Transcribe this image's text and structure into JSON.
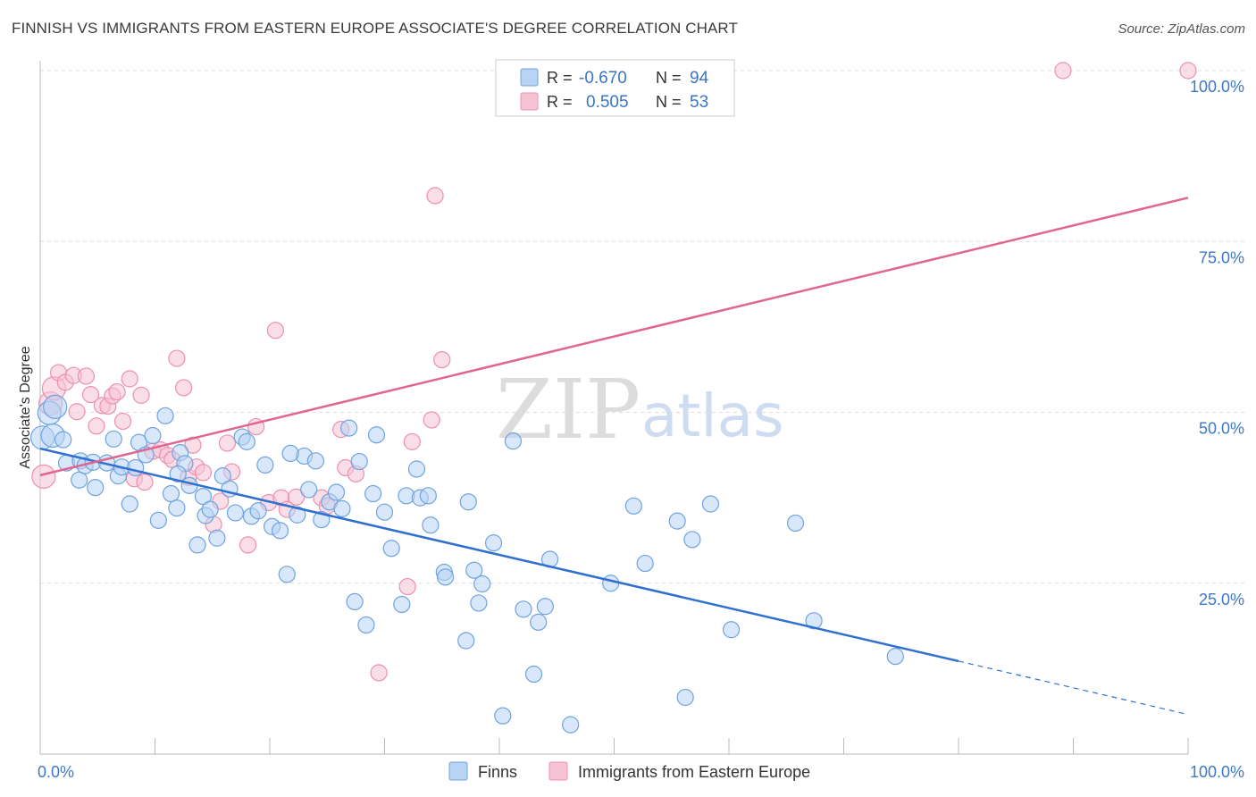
{
  "header": {
    "title": "FINNISH VS IMMIGRANTS FROM EASTERN EUROPE ASSOCIATE'S DEGREE CORRELATION CHART",
    "source": "Source: ZipAtlas.com"
  },
  "watermark": {
    "zip": "ZIP",
    "atlas": "atlas"
  },
  "colors": {
    "finns": "#6fa3e0",
    "finns_fill": "#b8d3f4",
    "finns_line": "#2f6fd0",
    "eastern": "#ee8fae",
    "eastern_fill": "#f6c3d4",
    "eastern_line": "#e06690",
    "axis_text": "#3d78c9",
    "grid": "#dddddd"
  },
  "legend": {
    "rows": [
      {
        "r_label": "R =",
        "r_value": "-0.670",
        "n_label": "N =",
        "n_value": "94"
      },
      {
        "r_label": "R =",
        "r_value": "0.505",
        "n_label": "N =",
        "n_value": "53"
      }
    ]
  },
  "chart_data": {
    "type": "scatter",
    "title": "FINNISH VS IMMIGRANTS FROM EASTERN EUROPE ASSOCIATE'S DEGREE CORRELATION CHART",
    "xlabel": "",
    "ylabel": "Associate's Degree",
    "xlim": [
      0,
      100
    ],
    "ylim": [
      0,
      100
    ],
    "x_tick_labels": [
      "0.0%",
      "100.0%"
    ],
    "y_tick_labels": [
      "25.0%",
      "50.0%",
      "75.0%",
      "100.0%"
    ],
    "y_ticks": [
      25,
      50,
      75,
      100
    ],
    "legend_position": "top-center",
    "series": [
      {
        "name": "Finns",
        "r": -0.67,
        "n": 94,
        "trend": {
          "x": [
            0,
            80
          ],
          "y": [
            44.7,
            13.6
          ],
          "dashed_to": [
            100,
            5.8
          ]
        },
        "points": [
          [
            0.2,
            46.3
          ],
          [
            0.8,
            49.9
          ],
          [
            1.1,
            46.6
          ],
          [
            1.3,
            50.8
          ],
          [
            2.3,
            42.6
          ],
          [
            3.4,
            40.1
          ],
          [
            3.5,
            42.9
          ],
          [
            3.9,
            42.2
          ],
          [
            4.6,
            42.7
          ],
          [
            4.8,
            39.0
          ],
          [
            5.8,
            42.6
          ],
          [
            6.4,
            46.1
          ],
          [
            6.8,
            40.7
          ],
          [
            7.1,
            42.0
          ],
          [
            7.8,
            36.6
          ],
          [
            8.3,
            41.9
          ],
          [
            8.6,
            45.6
          ],
          [
            9.2,
            43.8
          ],
          [
            9.8,
            46.6
          ],
          [
            10.3,
            34.2
          ],
          [
            10.9,
            49.5
          ],
          [
            11.4,
            38.1
          ],
          [
            11.9,
            36.0
          ],
          [
            12.2,
            44.1
          ],
          [
            12.6,
            42.5
          ],
          [
            13.0,
            39.3
          ],
          [
            13.7,
            30.6
          ],
          [
            14.2,
            37.7
          ],
          [
            14.4,
            34.9
          ],
          [
            14.8,
            35.8
          ],
          [
            15.4,
            31.6
          ],
          [
            15.9,
            40.7
          ],
          [
            16.5,
            38.8
          ],
          [
            17.0,
            35.3
          ],
          [
            17.6,
            46.4
          ],
          [
            18.0,
            45.7
          ],
          [
            18.4,
            34.8
          ],
          [
            19.0,
            35.6
          ],
          [
            19.6,
            42.3
          ],
          [
            20.2,
            33.3
          ],
          [
            20.9,
            32.7
          ],
          [
            21.5,
            26.3
          ],
          [
            22.4,
            35.0
          ],
          [
            23.0,
            43.6
          ],
          [
            23.4,
            38.7
          ],
          [
            24.0,
            42.9
          ],
          [
            24.5,
            34.3
          ],
          [
            25.2,
            36.9
          ],
          [
            25.8,
            38.3
          ],
          [
            26.3,
            35.9
          ],
          [
            26.9,
            47.7
          ],
          [
            27.4,
            22.3
          ],
          [
            27.8,
            42.8
          ],
          [
            28.4,
            18.9
          ],
          [
            29.0,
            38.1
          ],
          [
            29.3,
            46.7
          ],
          [
            30.0,
            35.4
          ],
          [
            30.6,
            30.1
          ],
          [
            31.5,
            21.9
          ],
          [
            31.9,
            37.8
          ],
          [
            32.8,
            41.7
          ],
          [
            33.1,
            37.5
          ],
          [
            33.8,
            37.8
          ],
          [
            34.0,
            33.5
          ],
          [
            35.2,
            26.6
          ],
          [
            35.3,
            25.9
          ],
          [
            37.1,
            16.6
          ],
          [
            37.3,
            36.9
          ],
          [
            37.8,
            26.9
          ],
          [
            38.2,
            22.1
          ],
          [
            38.5,
            24.9
          ],
          [
            39.5,
            30.9
          ],
          [
            40.3,
            5.6
          ],
          [
            41.2,
            45.8
          ],
          [
            42.1,
            21.2
          ],
          [
            43.0,
            11.7
          ],
          [
            43.4,
            19.3
          ],
          [
            44.0,
            21.6
          ],
          [
            44.4,
            28.5
          ],
          [
            46.2,
            4.3
          ],
          [
            49.7,
            25.0
          ],
          [
            51.7,
            36.3
          ],
          [
            52.7,
            27.9
          ],
          [
            55.5,
            34.1
          ],
          [
            56.2,
            8.3
          ],
          [
            56.8,
            31.4
          ],
          [
            58.4,
            36.6
          ],
          [
            60.2,
            18.2
          ],
          [
            65.8,
            33.8
          ],
          [
            67.4,
            19.5
          ],
          [
            74.5,
            14.3
          ],
          [
            2.0,
            46.0
          ],
          [
            12.0,
            41.0
          ],
          [
            21.8,
            44.0
          ]
        ]
      },
      {
        "name": "Immigrants from Eastern Europe",
        "r": 0.505,
        "n": 53,
        "trend": {
          "x": [
            0,
            100
          ],
          "y": [
            40.8,
            81.4
          ]
        },
        "points": [
          [
            0.3,
            40.6
          ],
          [
            0.9,
            51.3
          ],
          [
            1.2,
            53.5
          ],
          [
            1.6,
            55.8
          ],
          [
            2.2,
            54.4
          ],
          [
            2.9,
            55.4
          ],
          [
            3.2,
            50.1
          ],
          [
            4.0,
            55.3
          ],
          [
            4.4,
            52.6
          ],
          [
            4.9,
            48.0
          ],
          [
            5.4,
            51.0
          ],
          [
            5.9,
            50.9
          ],
          [
            6.3,
            52.4
          ],
          [
            6.7,
            53.0
          ],
          [
            7.2,
            48.7
          ],
          [
            7.8,
            54.9
          ],
          [
            8.2,
            40.3
          ],
          [
            8.8,
            52.5
          ],
          [
            9.1,
            39.8
          ],
          [
            9.8,
            44.3
          ],
          [
            10.5,
            44.5
          ],
          [
            11.1,
            43.7
          ],
          [
            11.5,
            43.1
          ],
          [
            11.9,
            57.9
          ],
          [
            12.5,
            53.6
          ],
          [
            12.9,
            40.5
          ],
          [
            13.3,
            45.2
          ],
          [
            13.6,
            42.0
          ],
          [
            14.2,
            41.2
          ],
          [
            15.1,
            33.6
          ],
          [
            15.7,
            37.0
          ],
          [
            16.3,
            45.5
          ],
          [
            16.7,
            41.3
          ],
          [
            18.1,
            30.6
          ],
          [
            18.8,
            47.9
          ],
          [
            19.9,
            36.8
          ],
          [
            20.5,
            62.0
          ],
          [
            21.0,
            37.5
          ],
          [
            21.5,
            35.8
          ],
          [
            22.3,
            37.6
          ],
          [
            24.5,
            37.5
          ],
          [
            25.0,
            36.3
          ],
          [
            26.2,
            47.5
          ],
          [
            26.6,
            41.9
          ],
          [
            27.5,
            41.0
          ],
          [
            29.5,
            11.9
          ],
          [
            32.0,
            24.5
          ],
          [
            32.4,
            45.7
          ],
          [
            34.1,
            48.9
          ],
          [
            34.4,
            81.7
          ],
          [
            35.0,
            57.7
          ],
          [
            89.1,
            100.0
          ],
          [
            100.0,
            100.0
          ]
        ]
      }
    ]
  },
  "bottom_legend": {
    "items": [
      {
        "label": "Finns"
      },
      {
        "label": "Immigrants from Eastern Europe"
      }
    ]
  }
}
